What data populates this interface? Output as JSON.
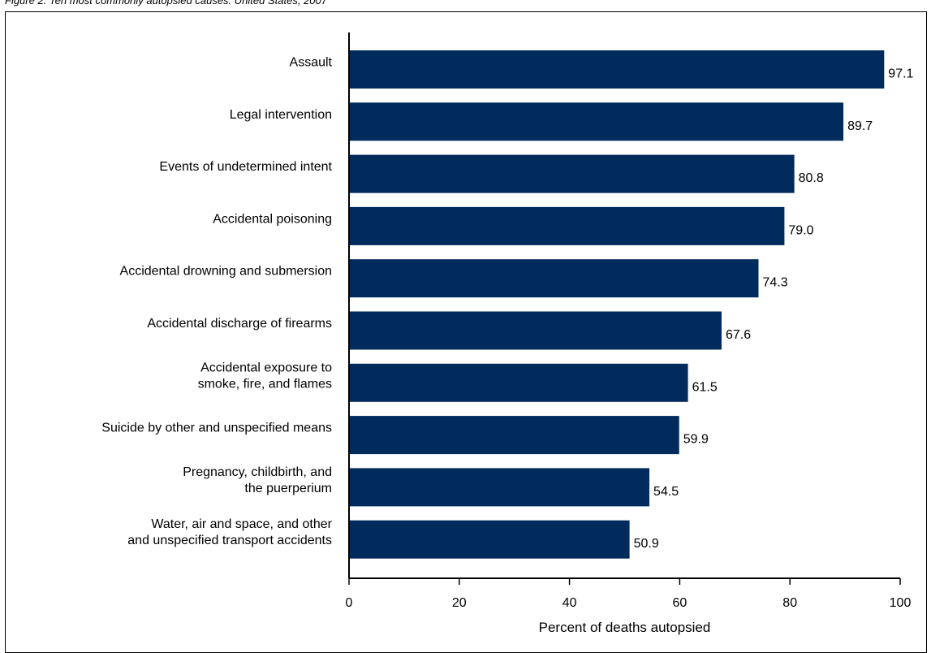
{
  "caption": "Figure 2. Ten most commonly autopsied causes: United States, 2007",
  "chart_data": {
    "type": "bar",
    "orientation": "horizontal",
    "categories": [
      [
        "Assault"
      ],
      [
        "Legal intervention"
      ],
      [
        "Events of undetermined intent"
      ],
      [
        "Accidental poisoning"
      ],
      [
        "Accidental drowning and submersion"
      ],
      [
        "Accidental discharge of firearms"
      ],
      [
        "Accidental exposure to",
        "smoke, fire, and flames"
      ],
      [
        "Suicide by other and unspecified means"
      ],
      [
        "Pregnancy, childbirth, and",
        "the puerperium"
      ],
      [
        "Water, air and space, and other",
        "and unspecified transport accidents"
      ]
    ],
    "values": [
      97.1,
      89.7,
      80.8,
      79.0,
      74.3,
      67.6,
      61.5,
      59.9,
      54.5,
      50.9
    ],
    "data_labels": [
      "97.1",
      "89.7",
      "80.8",
      "79.0",
      "74.3",
      "67.6",
      "61.5",
      "59.9",
      "54.5",
      "50.9"
    ],
    "xlabel": "Percent of deaths autopsied",
    "xlim": [
      0,
      100
    ],
    "xticks": [
      0,
      20,
      40,
      60,
      80,
      100
    ],
    "grid": false,
    "bar_color": "#002b5c"
  }
}
